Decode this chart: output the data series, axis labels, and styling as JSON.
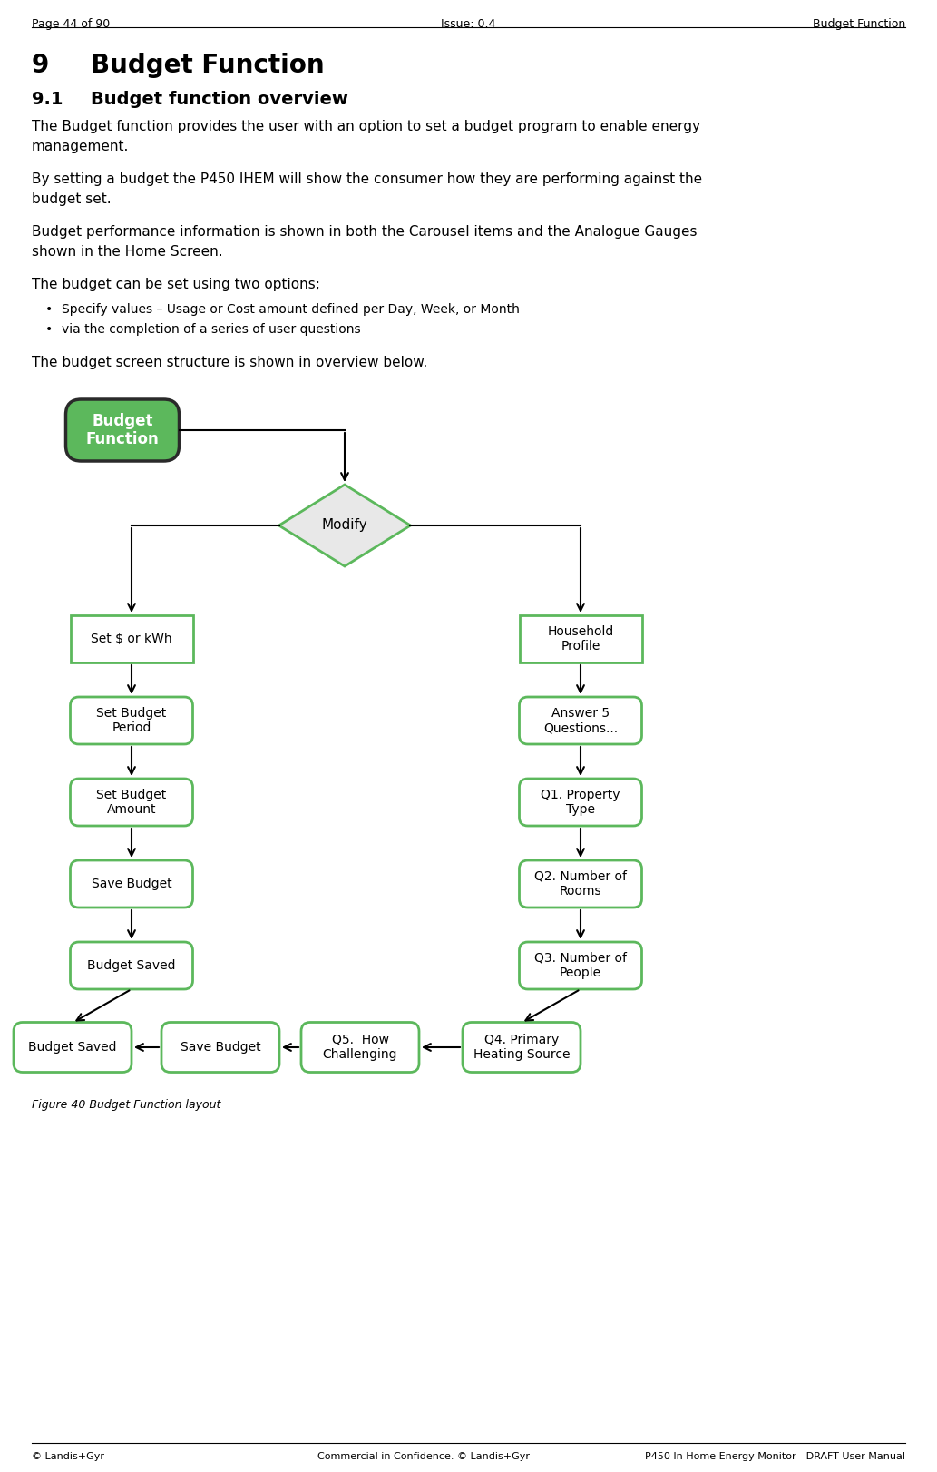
{
  "header_left": "Page 44 of 90",
  "header_center": "Issue: 0.4",
  "header_right": "Budget Function",
  "footer_left": "© Landis+Gyr",
  "footer_center": "Commercial in Confidence. © Landis+Gyr",
  "footer_right": "P450 In Home Energy Monitor - DRAFT User Manual",
  "section_number": "9",
  "section_title": "Budget Function",
  "subsection_number": "9.1",
  "subsection_title": "Budget function overview",
  "para1_line1": "The Budget function provides the user with an option to set a budget program to enable energy",
  "para1_line2": "management.",
  "para2_line1": "By setting a budget the P450 IHEM will show the consumer how they are performing against the",
  "para2_line2": "budget set.",
  "para3_line1": "Budget performance information is shown in both the Carousel items and the Analogue Gauges",
  "para3_line2": "shown in the Home Screen.",
  "para4": "The budget can be set using two options;",
  "bullet1": "Specify values – Usage or Cost amount defined per Day, Week, or Month",
  "bullet2": "via the completion of a series of user questions",
  "intro_text": "The budget screen structure is shown in overview below.",
  "figure_caption": "Figure 40 Budget Function layout",
  "bg_color": "#ffffff",
  "text_color": "#000000",
  "green_fill": "#5cb85c",
  "dark_border": "#2a2a2a",
  "green_border": "#5cb85c",
  "diamond_fill": "#e8e8e8",
  "rect_fill": "#ffffff"
}
